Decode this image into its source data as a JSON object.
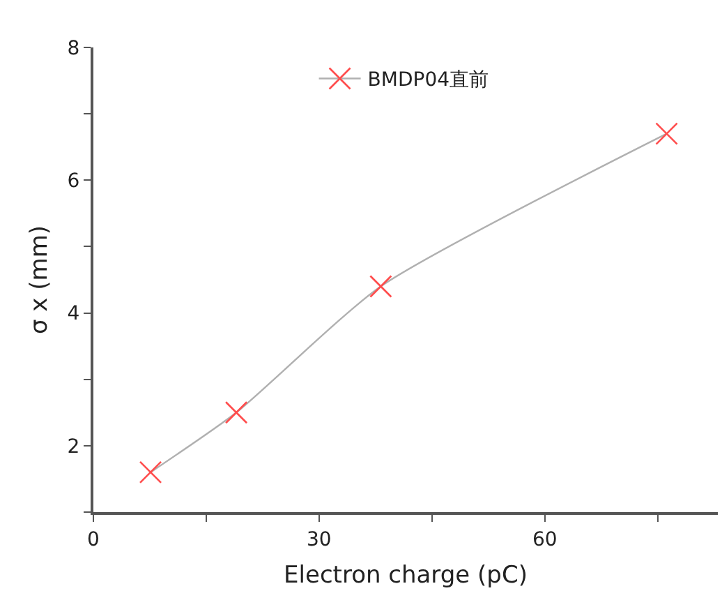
{
  "chart_data": {
    "type": "line",
    "xlabel": "Electron charge (pC)",
    "ylabel": "σ x (mm)",
    "x": [
      7.6,
      19.0,
      38.2,
      76.2
    ],
    "series": [
      {
        "name": "BMDP04直前",
        "color": "#ff4d4d",
        "values": [
          1.6,
          2.5,
          4.4,
          6.7
        ]
      }
    ],
    "xlim": [
      0,
      83
    ],
    "xticks": [
      0,
      {
        "value": 15,
        "label": null
      },
      30,
      {
        "value": 45,
        "label": null
      },
      60,
      {
        "value": 75,
        "label": null
      }
    ],
    "ylim": [
      1,
      8
    ],
    "yticks": [
      {
        "value": 1,
        "label": null
      },
      2,
      {
        "value": 3,
        "label": null
      },
      4,
      {
        "value": 5,
        "label": null
      },
      6,
      {
        "value": 7,
        "label": null
      },
      8
    ],
    "grid": false,
    "legend": "top",
    "marker": "cross",
    "line_style": "solid"
  }
}
